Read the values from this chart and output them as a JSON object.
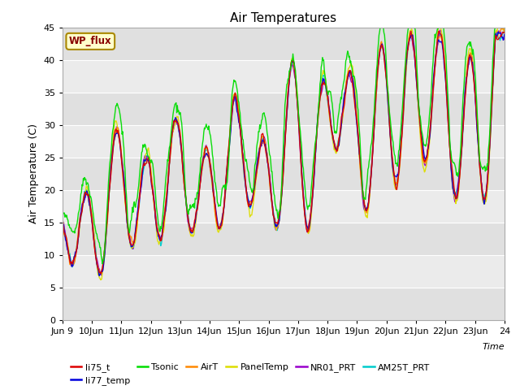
{
  "title": "Air Temperatures",
  "ylabel": "Air Temperature (C)",
  "xlabel": "Time",
  "ylim": [
    0,
    45
  ],
  "yticks": [
    0,
    5,
    10,
    15,
    20,
    25,
    30,
    35,
    40,
    45
  ],
  "series": [
    "li75_t",
    "li77_temp",
    "Tsonic",
    "AirT",
    "PanelTemp",
    "NR01_PRT",
    "AM25T_PRT"
  ],
  "colors": [
    "#dd0000",
    "#0000dd",
    "#00dd00",
    "#ff8800",
    "#dddd00",
    "#9900cc",
    "#00cccc"
  ],
  "legend_label": "WP_flux",
  "legend_bg": "#ffffcc",
  "legend_border": "#aa8800",
  "legend_text_color": "#880000",
  "band_colors": [
    "#e0e0e0",
    "#ebebeb"
  ],
  "n_points": 720,
  "total_days": 15,
  "x_tick_days": [
    9,
    10,
    11,
    12,
    13,
    14,
    15,
    16,
    17,
    18,
    19,
    20,
    21,
    22,
    23,
    24
  ],
  "x_tick_labels": [
    "Jun 9",
    "10Jun",
    "11Jun",
    "12Jun",
    "13Jun",
    "14Jun",
    "15Jun",
    "16Jun",
    "17Jun",
    "18Jun",
    "19Jun",
    "20Jun",
    "21Jun",
    "22Jun",
    "23Jun",
    "24"
  ]
}
